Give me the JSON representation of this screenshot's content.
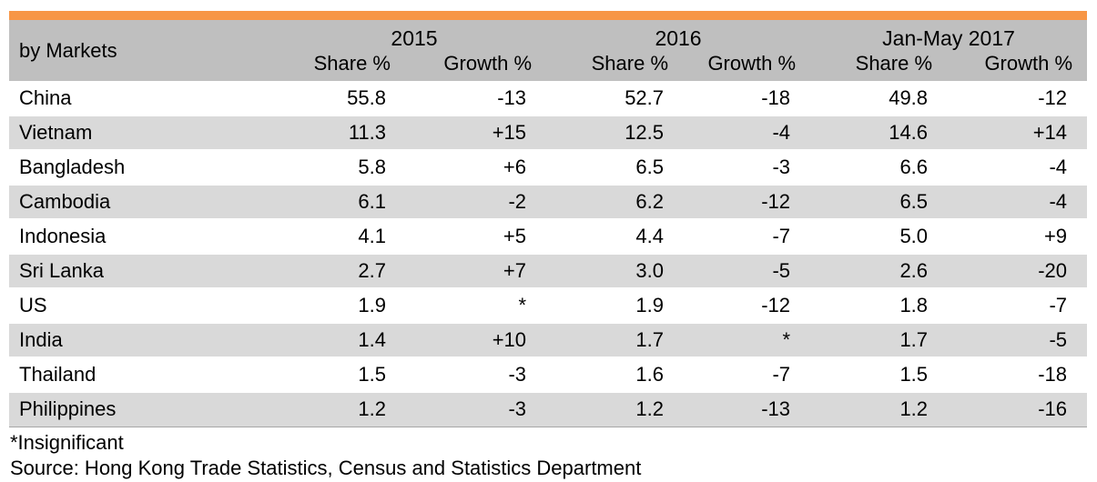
{
  "table": {
    "market_header": "by Markets",
    "years": [
      "2015",
      "2016",
      "Jan-May 2017"
    ],
    "share_label": "Share %",
    "growth_label": "Growth %",
    "rows": [
      {
        "market": "China",
        "values": [
          "55.8",
          "-13",
          "52.7",
          "-18",
          "49.8",
          "-12"
        ]
      },
      {
        "market": "Vietnam",
        "values": [
          "11.3",
          "+15",
          "12.5",
          "-4",
          "14.6",
          "+14"
        ]
      },
      {
        "market": "Bangladesh",
        "values": [
          "5.8",
          "+6",
          "6.5",
          "-3",
          "6.6",
          "-4"
        ]
      },
      {
        "market": "Cambodia",
        "values": [
          "6.1",
          "-2",
          "6.2",
          "-12",
          "6.5",
          "-4"
        ]
      },
      {
        "market": "Indonesia",
        "values": [
          "4.1",
          "+5",
          "4.4",
          "-7",
          "5.0",
          "+9"
        ]
      },
      {
        "market": "Sri Lanka",
        "values": [
          "2.7",
          "+7",
          "3.0",
          "-5",
          "2.6",
          "-20"
        ]
      },
      {
        "market": "US",
        "values": [
          "1.9",
          "*",
          "1.9",
          "-12",
          "1.8",
          "-7"
        ]
      },
      {
        "market": "India",
        "values": [
          "1.4",
          "+10",
          "1.7",
          "*",
          "1.7",
          "-5"
        ]
      },
      {
        "market": "Thailand",
        "values": [
          "1.5",
          "-3",
          "1.6",
          "-7",
          "1.5",
          "-18"
        ]
      },
      {
        "market": "Philippines",
        "values": [
          "1.2",
          "-3",
          "1.2",
          "-13",
          "1.2",
          "-16"
        ]
      }
    ]
  },
  "notes": {
    "footnote": "*Insignificant",
    "source": "Source: Hong Kong Trade Statistics, Census and Statistics Department"
  },
  "colors": {
    "accent_bar": "#f79646",
    "header_bg": "#bfbfbf",
    "alt_row_bg": "#d9d9d9"
  }
}
